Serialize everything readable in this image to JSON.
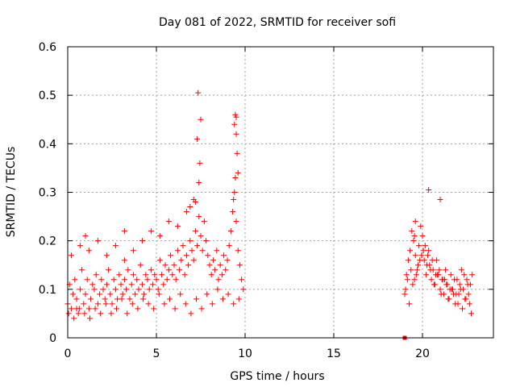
{
  "chart_data": {
    "type": "scatter",
    "title": "Day 081 of 2022, SRMTID for receiver sofi",
    "xlabel": "GPS time / hours",
    "ylabel": "SRMTID / TECUs",
    "xlim": [
      0,
      24
    ],
    "ylim": [
      0,
      0.6
    ],
    "xticks": [
      0,
      5,
      10,
      15,
      20
    ],
    "xtick_labels": [
      "0",
      "5",
      "10",
      "15",
      "20"
    ],
    "yticks": [
      0,
      0.1,
      0.2,
      0.3,
      0.4,
      0.5,
      0.6
    ],
    "ytick_labels": [
      "0",
      "0.1",
      "0.2",
      "0.3",
      "0.4",
      "0.5",
      "0.6"
    ],
    "grid": true,
    "marker": "+",
    "color": "#ff0000",
    "series": [
      {
        "name": "SRMTID",
        "x": [
          0.0,
          0.1,
          0.2,
          0.3,
          0.4,
          0.5,
          0.6,
          0.7,
          0.8,
          0.9,
          1.0,
          1.1,
          1.2,
          1.3,
          1.4,
          1.5,
          1.6,
          1.7,
          1.8,
          1.9,
          2.0,
          2.1,
          2.2,
          2.3,
          2.4,
          2.5,
          2.6,
          2.7,
          2.8,
          2.9,
          3.0,
          3.1,
          3.2,
          3.3,
          3.4,
          3.5,
          3.6,
          3.7,
          3.8,
          3.9,
          4.0,
          4.1,
          4.2,
          4.3,
          4.4,
          4.5,
          4.6,
          4.7,
          4.8,
          4.9,
          5.0,
          5.1,
          5.2,
          5.3,
          5.4,
          5.5,
          5.6,
          5.7,
          5.8,
          5.9,
          6.0,
          6.1,
          6.2,
          6.3,
          6.4,
          6.5,
          6.6,
          6.7,
          6.8,
          6.9,
          7.0,
          7.1,
          7.2,
          7.3,
          7.4,
          7.5,
          7.6,
          7.7,
          7.8,
          7.9,
          8.0,
          8.1,
          8.2,
          8.3,
          8.4,
          8.5,
          8.6,
          8.7,
          8.8,
          8.9,
          9.0,
          9.1,
          9.2,
          9.3,
          9.4,
          9.5,
          9.6,
          9.7,
          9.8,
          9.9,
          0.05,
          0.35,
          0.65,
          0.95,
          1.25,
          1.55,
          1.85,
          2.15,
          2.45,
          2.75,
          3.05,
          3.35,
          3.65,
          3.95,
          4.25,
          4.55,
          4.85,
          5.15,
          5.45,
          5.75,
          6.05,
          6.35,
          6.65,
          6.95,
          7.25,
          7.55,
          7.85,
          8.15,
          8.45,
          8.75,
          9.05,
          9.35,
          9.65,
          0.2,
          0.7,
          1.2,
          1.7,
          2.2,
          2.7,
          3.2,
          3.7,
          4.2,
          4.7,
          5.2,
          5.7,
          6.2,
          6.7,
          7.2,
          7.4,
          7.45,
          7.5,
          7.35,
          7.3,
          9.4,
          9.45,
          9.5,
          9.55,
          9.6,
          9.45,
          9.5,
          9.35,
          6.9,
          7.1,
          3.2,
          1.0,
          0.5,
          19.0,
          19.1,
          19.2,
          19.3,
          19.4,
          19.5,
          19.6,
          19.7,
          19.8,
          19.9,
          20.0,
          20.1,
          20.2,
          20.3,
          20.4,
          20.5,
          20.6,
          20.7,
          20.8,
          20.9,
          21.0,
          21.1,
          21.2,
          21.3,
          21.4,
          21.5,
          21.6,
          21.7,
          21.8,
          21.9,
          22.0,
          22.1,
          22.2,
          22.3,
          22.4,
          22.5,
          22.6,
          22.7,
          22.8,
          19.05,
          19.25,
          19.45,
          19.65,
          19.85,
          20.05,
          20.25,
          20.45,
          20.65,
          20.85,
          21.05,
          21.25,
          21.45,
          21.65,
          21.85,
          22.05,
          22.25,
          22.45,
          22.65,
          19.15,
          19.35,
          19.55,
          19.75,
          19.95,
          20.15,
          20.35,
          20.55,
          20.75,
          20.95,
          21.15,
          21.35,
          21.55,
          21.75,
          21.95,
          22.15,
          22.35,
          22.55,
          22.75,
          19.55,
          19.6,
          20.35,
          21.0,
          19.0
        ],
        "y": [
          0.07,
          0.11,
          0.06,
          0.09,
          0.12,
          0.08,
          0.05,
          0.1,
          0.14,
          0.07,
          0.09,
          0.12,
          0.06,
          0.08,
          0.11,
          0.1,
          0.13,
          0.07,
          0.09,
          0.12,
          0.1,
          0.08,
          0.11,
          0.14,
          0.09,
          0.07,
          0.12,
          0.1,
          0.08,
          0.13,
          0.11,
          0.09,
          0.12,
          0.1,
          0.14,
          0.08,
          0.11,
          0.13,
          0.09,
          0.12,
          0.1,
          0.15,
          0.11,
          0.09,
          0.13,
          0.12,
          0.1,
          0.14,
          0.11,
          0.13,
          0.12,
          0.1,
          0.16,
          0.13,
          0.11,
          0.15,
          0.12,
          0.14,
          0.17,
          0.13,
          0.15,
          0.12,
          0.18,
          0.14,
          0.16,
          0.19,
          0.13,
          0.17,
          0.15,
          0.2,
          0.18,
          0.16,
          0.22,
          0.19,
          0.25,
          0.21,
          0.18,
          0.24,
          0.2,
          0.17,
          0.15,
          0.13,
          0.16,
          0.14,
          0.18,
          0.12,
          0.15,
          0.13,
          0.17,
          0.14,
          0.16,
          0.19,
          0.22,
          0.26,
          0.3,
          0.24,
          0.18,
          0.15,
          0.12,
          0.1,
          0.05,
          0.04,
          0.06,
          0.05,
          0.04,
          0.06,
          0.05,
          0.07,
          0.05,
          0.06,
          0.08,
          0.05,
          0.07,
          0.06,
          0.08,
          0.07,
          0.06,
          0.09,
          0.07,
          0.08,
          0.06,
          0.09,
          0.07,
          0.05,
          0.08,
          0.06,
          0.09,
          0.07,
          0.1,
          0.08,
          0.09,
          0.07,
          0.08,
          0.17,
          0.19,
          0.18,
          0.2,
          0.17,
          0.19,
          0.16,
          0.18,
          0.2,
          0.22,
          0.21,
          0.24,
          0.23,
          0.26,
          0.28,
          0.32,
          0.36,
          0.45,
          0.505,
          0.41,
          0.44,
          0.46,
          0.42,
          0.38,
          0.34,
          0.33,
          0.455,
          0.285,
          0.27,
          0.285,
          0.22,
          0.21,
          0.06,
          0.09,
          0.13,
          0.16,
          0.18,
          0.22,
          0.2,
          0.17,
          0.14,
          0.19,
          0.23,
          0.21,
          0.16,
          0.13,
          0.17,
          0.15,
          0.12,
          0.14,
          0.11,
          0.16,
          0.13,
          0.1,
          0.12,
          0.09,
          0.14,
          0.11,
          0.08,
          0.13,
          0.1,
          0.12,
          0.09,
          0.07,
          0.11,
          0.14,
          0.1,
          0.08,
          0.12,
          0.09,
          0.11,
          0.13,
          0.1,
          0.07,
          0.11,
          0.13,
          0.16,
          0.18,
          0.15,
          0.14,
          0.11,
          0.13,
          0.09,
          0.12,
          0.08,
          0.1,
          0.07,
          0.09,
          0.06,
          0.08,
          0.07,
          0.12,
          0.14,
          0.12,
          0.15,
          0.17,
          0.19,
          0.18,
          0.16,
          0.13,
          0.14,
          0.12,
          0.11,
          0.1,
          0.09,
          0.12,
          0.1,
          0.13,
          0.11,
          0.05,
          0.21,
          0.24,
          0.305,
          0.285,
          0.0
        ]
      }
    ]
  }
}
